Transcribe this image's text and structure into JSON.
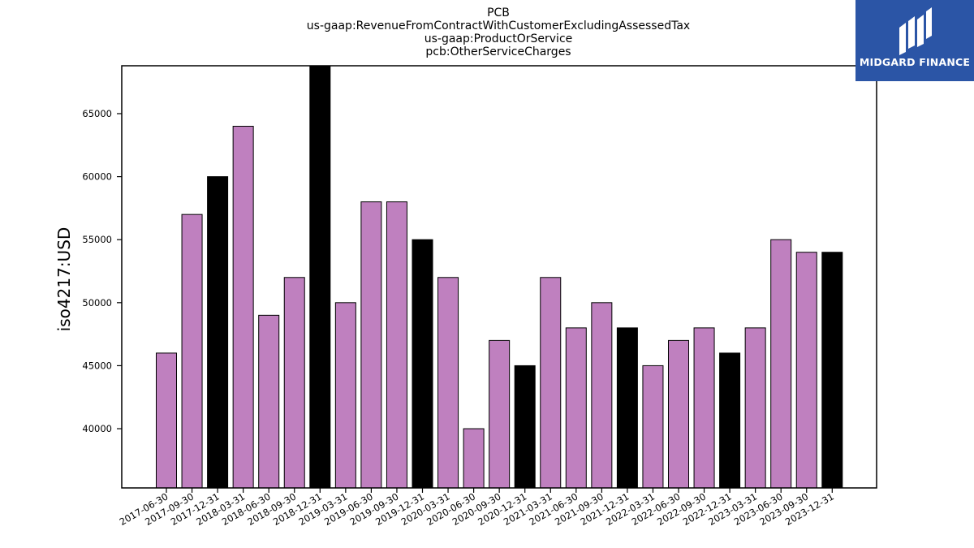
{
  "logo": {
    "text": "MIDGARD FINANCE",
    "background": "#2b55a6"
  },
  "chart_data": {
    "type": "bar",
    "title_lines": [
      "PCB",
      "us-gaap:RevenueFromContractWithCustomerExcludingAssessedTax",
      "us-gaap:ProductOrService",
      "pcb:OtherServiceCharges"
    ],
    "ylabel": "iso4217:USD",
    "xlabel": "",
    "ylim": [
      35300,
      68800
    ],
    "yticks": [
      40000,
      45000,
      50000,
      55000,
      60000,
      65000
    ],
    "categories": [
      "2017-06-30",
      "2017-09-30",
      "2017-12-31",
      "2018-03-31",
      "2018-06-30",
      "2018-09-30",
      "2018-12-31",
      "2019-03-31",
      "2019-06-30",
      "2019-09-30",
      "2019-12-31",
      "2020-03-31",
      "2020-06-30",
      "2020-09-30",
      "2020-12-31",
      "2021-03-31",
      "2021-06-30",
      "2021-09-30",
      "2021-12-31",
      "2022-03-31",
      "2022-06-30",
      "2022-09-30",
      "2022-12-31",
      "2023-03-31",
      "2023-06-30",
      "2023-09-30",
      "2023-12-31"
    ],
    "values": [
      46000,
      57000,
      60000,
      64000,
      49000,
      52000,
      69000,
      50000,
      58000,
      58000,
      55000,
      52000,
      40000,
      47000,
      45000,
      52000,
      48000,
      50000,
      48000,
      45000,
      47000,
      48000,
      46000,
      48000,
      55000,
      54000,
      54000
    ],
    "colors": {
      "quarter": "#bf80bf",
      "year_end": "#000000"
    },
    "year_end_flags": [
      false,
      false,
      true,
      false,
      false,
      false,
      true,
      false,
      false,
      false,
      true,
      false,
      false,
      false,
      true,
      false,
      false,
      false,
      true,
      false,
      false,
      false,
      true,
      false,
      false,
      false,
      true
    ],
    "grid": false
  }
}
